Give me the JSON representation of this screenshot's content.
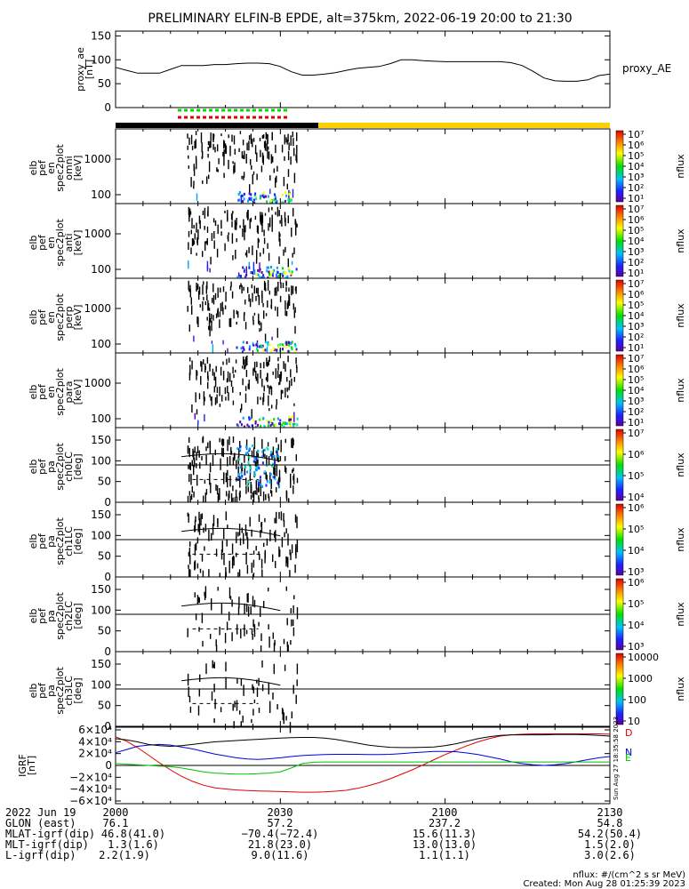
{
  "title": "PRELIMINARY ELFIN-B EPDE, alt=375km, 2022-06-19 20:00 to 21:30",
  "chart_data": [
    {
      "type": "line",
      "name": "proxy_ae_panel",
      "ylabel": [
        "proxy_ae",
        "[nT]"
      ],
      "ylim": [
        0,
        160
      ],
      "yticks": [
        0,
        50,
        100,
        150
      ],
      "legend": "proxy_AE",
      "x": [
        0,
        2,
        4,
        6,
        8,
        10,
        12,
        14,
        16,
        18,
        20,
        22,
        24,
        26,
        28,
        30,
        32,
        34,
        36,
        38,
        40,
        42,
        44,
        46,
        48,
        50,
        52,
        54,
        56,
        58,
        60,
        62,
        64,
        66,
        68,
        70,
        72,
        74,
        76,
        78,
        80,
        82,
        84,
        86,
        88,
        90
      ],
      "values": [
        84,
        78,
        72,
        72,
        72,
        80,
        88,
        88,
        88,
        90,
        90,
        92,
        93,
        93,
        92,
        86,
        75,
        68,
        68,
        70,
        73,
        78,
        82,
        84,
        86,
        92,
        100,
        100,
        98,
        97,
        96,
        96,
        96,
        96,
        96,
        96,
        94,
        88,
        76,
        62,
        56,
        55,
        55,
        58,
        67,
        70
      ]
    },
    {
      "type": "heatmap",
      "name": "energy_spectrograms",
      "panels": [
        {
          "ylabel": [
            "elb",
            "pef",
            "en",
            "spec2plot",
            "omni",
            "[keV]"
          ],
          "yticks": [
            "100",
            "1000"
          ]
        },
        {
          "ylabel": [
            "elb",
            "pef",
            "en",
            "spec2plot",
            "anti",
            "[keV]"
          ],
          "yticks": [
            "100",
            "1000"
          ]
        },
        {
          "ylabel": [
            "elb",
            "pef",
            "en",
            "spec2plot",
            "perp",
            "[keV]"
          ],
          "yticks": [
            "100",
            "1000"
          ]
        },
        {
          "ylabel": [
            "elb",
            "pef",
            "en",
            "spec2plot",
            "para",
            "[keV]"
          ],
          "yticks": [
            "100",
            "1000"
          ]
        }
      ],
      "active_interval": [
        13,
        33
      ],
      "colorbar": {
        "label": "nflux",
        "ticks": [
          "10¹",
          "10²",
          "10³",
          "10⁴",
          "10⁵",
          "10⁶",
          "10⁷"
        ]
      }
    },
    {
      "type": "heatmap",
      "name": "pitch_angle_spectrograms",
      "panels": [
        {
          "ylabel": [
            "elb",
            "pef",
            "pa",
            "spec2plot",
            "ch0LC",
            "[deg]"
          ],
          "yticks": [
            "0",
            "50",
            "100",
            "150"
          ],
          "colorbar_ticks": [
            "10⁴",
            "10⁵",
            "10⁶",
            "10⁷"
          ]
        },
        {
          "ylabel": [
            "elb",
            "pef",
            "pa",
            "spec2plot",
            "ch1LC",
            "[deg]"
          ],
          "yticks": [
            "0",
            "50",
            "100",
            "150"
          ],
          "colorbar_ticks": [
            "10³",
            "10⁴",
            "10⁵",
            "10⁶"
          ]
        },
        {
          "ylabel": [
            "elb",
            "pef",
            "pa",
            "spec2plot",
            "ch2LC",
            "[deg]"
          ],
          "yticks": [
            "0",
            "50",
            "100",
            "150"
          ],
          "colorbar_ticks": [
            "10³",
            "10⁴",
            "10⁵",
            "10⁶"
          ]
        },
        {
          "ylabel": [
            "elb",
            "pef",
            "pa",
            "spec2plot",
            "ch3LC",
            "[deg]"
          ],
          "yticks": [
            "0",
            "50",
            "100",
            "150"
          ],
          "colorbar_ticks": [
            "10",
            "100",
            "1000",
            "10000"
          ]
        }
      ],
      "colorbar_label": "nflux",
      "ylim": [
        0,
        180
      ]
    },
    {
      "type": "line",
      "name": "igrf_panel",
      "ylabel": [
        "IGRF",
        "[nT]"
      ],
      "ylim": [
        -60000,
        60000
      ],
      "yticks": [
        "−6×10⁴",
        "−4×10⁴",
        "−2×10⁴",
        "0",
        "2×10⁴",
        "4×10⁴",
        "6×10⁴"
      ],
      "x": [
        0,
        2,
        4,
        6,
        8,
        10,
        12,
        14,
        16,
        18,
        20,
        22,
        24,
        26,
        28,
        30,
        32,
        34,
        36,
        38,
        40,
        42,
        44,
        46,
        48,
        50,
        52,
        54,
        56,
        58,
        60,
        62,
        64,
        66,
        68,
        70,
        72,
        74,
        76,
        78,
        80,
        82,
        84,
        86,
        88,
        90
      ],
      "series": [
        {
          "name": "D",
          "color": "#e00000",
          "values": [
            45000,
            38000,
            28000,
            16000,
            4000,
            -7000,
            -17000,
            -25000,
            -31000,
            -35000,
            -37000,
            -38500,
            -39500,
            -40000,
            -40500,
            -41000,
            -41500,
            -42000,
            -42000,
            -41500,
            -40500,
            -39000,
            -36000,
            -32000,
            -27000,
            -21000,
            -14000,
            -7000,
            1000,
            9000,
            17000,
            24000,
            31000,
            37000,
            42000,
            46000,
            48000,
            49000,
            49500,
            49500,
            49500,
            49500,
            49500,
            49500,
            49500,
            49000
          ]
        },
        {
          "name": "N",
          "color": "#0000e0",
          "values": [
            20000,
            25000,
            30000,
            32000,
            33000,
            32000,
            29000,
            26000,
            22000,
            18000,
            15000,
            12000,
            10000,
            9500,
            10500,
            12000,
            14000,
            15500,
            16500,
            17000,
            17500,
            17500,
            17500,
            17000,
            17000,
            17500,
            18500,
            20000,
            21000,
            22000,
            22000,
            21500,
            19500,
            17000,
            13500,
            10000,
            6000,
            3000,
            1000,
            0,
            1000,
            3000,
            6000,
            9000,
            12000,
            14000
          ]
        },
        {
          "name": "E",
          "color": "#00c000",
          "values": [
            3000,
            2000,
            1000,
            0,
            -1000,
            -2000,
            -4000,
            -7000,
            -10000,
            -12000,
            -13000,
            -13500,
            -13500,
            -13000,
            -12000,
            -10000,
            -4000,
            3000,
            5000,
            5500,
            5500,
            5500,
            5500,
            5500,
            5500,
            5500,
            5500,
            5500,
            5500,
            5500,
            5500,
            5500,
            5500,
            5500,
            5500,
            5500,
            5500,
            5500,
            5500,
            5500,
            5500,
            5500,
            5500,
            5500,
            5500,
            5500
          ]
        },
        {
          "name": "",
          "color": "#000000",
          "values": [
            42000,
            40000,
            37000,
            33000,
            31000,
            30000,
            31000,
            33000,
            35000,
            37000,
            38000,
            39000,
            40000,
            41000,
            42000,
            43000,
            43500,
            44000,
            44000,
            43000,
            41000,
            38000,
            35000,
            32000,
            30000,
            28500,
            28000,
            28000,
            28500,
            29000,
            31000,
            34000,
            38000,
            42000,
            45000,
            47000,
            48000,
            48000,
            48000,
            48000,
            48500,
            48500,
            48500,
            48000,
            47000,
            46000
          ]
        }
      ],
      "side_note": "Sun Aug 27 18:35:58 2023"
    }
  ],
  "footer": {
    "rows": [
      {
        "label": "2022 Jun 19",
        "values": [
          "2000",
          "2030",
          "2100",
          "2130"
        ]
      },
      {
        "label": "GLON (east)",
        "values": [
          "76.1",
          "57.2",
          "237.2",
          "54.8"
        ]
      },
      {
        "label": "MLAT-igrf(dip)",
        "values": [
          "46.8(41.0)",
          "−70.4(−72.4)",
          "15.6(11.3)",
          "54.2(50.4)"
        ]
      },
      {
        "label": "MLT-igrf(dip)",
        "values": [
          "1.3(1.6)",
          "21.8(23.0)",
          "13.0(13.0)",
          "1.5(2.0)"
        ]
      },
      {
        "label": "L-igrf(dip)",
        "values": [
          "2.2(1.9)",
          "9.0(11.6)",
          "1.1(1.1)",
          "3.0(2.6)"
        ]
      }
    ],
    "units_note": "nflux: #/(cm^2 s sr MeV)",
    "created": "Created: Mon Aug 28 01:25:39 2023"
  }
}
